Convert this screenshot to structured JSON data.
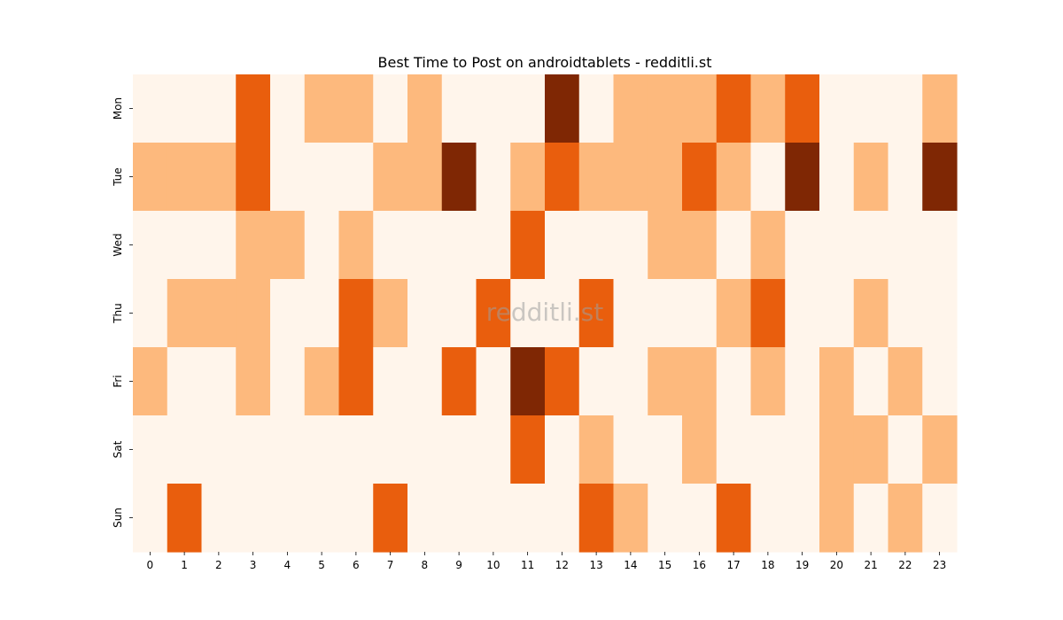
{
  "chart_data": {
    "type": "heatmap",
    "title": "Best Time to Post on androidtablets - redditli.st",
    "watermark": "redditli.st",
    "xlabel": "",
    "ylabel": "",
    "x": [
      "0",
      "1",
      "2",
      "3",
      "4",
      "5",
      "6",
      "7",
      "8",
      "9",
      "10",
      "11",
      "12",
      "13",
      "14",
      "15",
      "16",
      "17",
      "18",
      "19",
      "20",
      "21",
      "22",
      "23"
    ],
    "y": [
      "Mon",
      "Tue",
      "Wed",
      "Thu",
      "Fri",
      "Sat",
      "Sun"
    ],
    "colormap": "Oranges",
    "colors": [
      "#fff5eb",
      "#fdb97d",
      "#e95e0d",
      "#7f2704"
    ],
    "legend": "none",
    "values": [
      [
        0,
        0,
        0,
        2,
        0,
        1,
        1,
        0,
        1,
        0,
        0,
        0,
        3,
        0,
        1,
        1,
        1,
        2,
        1,
        2,
        0,
        0,
        0,
        1
      ],
      [
        1,
        1,
        1,
        2,
        0,
        0,
        0,
        1,
        1,
        3,
        0,
        1,
        2,
        1,
        1,
        1,
        2,
        1,
        0,
        3,
        0,
        1,
        0,
        3
      ],
      [
        0,
        0,
        0,
        1,
        1,
        0,
        1,
        0,
        0,
        0,
        0,
        2,
        0,
        0,
        0,
        1,
        1,
        0,
        1,
        0,
        0,
        0,
        0,
        0
      ],
      [
        0,
        1,
        1,
        1,
        0,
        0,
        2,
        1,
        0,
        0,
        2,
        0,
        0,
        2,
        0,
        0,
        0,
        1,
        2,
        0,
        0,
        1,
        0,
        0
      ],
      [
        1,
        0,
        0,
        1,
        0,
        1,
        2,
        0,
        0,
        2,
        0,
        3,
        2,
        0,
        0,
        1,
        1,
        0,
        1,
        0,
        1,
        0,
        1,
        0
      ],
      [
        0,
        0,
        0,
        0,
        0,
        0,
        0,
        0,
        0,
        0,
        0,
        2,
        0,
        1,
        0,
        0,
        1,
        0,
        0,
        0,
        1,
        1,
        0,
        1
      ],
      [
        0,
        2,
        0,
        0,
        0,
        0,
        0,
        2,
        0,
        0,
        0,
        0,
        0,
        2,
        1,
        0,
        0,
        2,
        0,
        0,
        1,
        0,
        1,
        0
      ]
    ]
  }
}
